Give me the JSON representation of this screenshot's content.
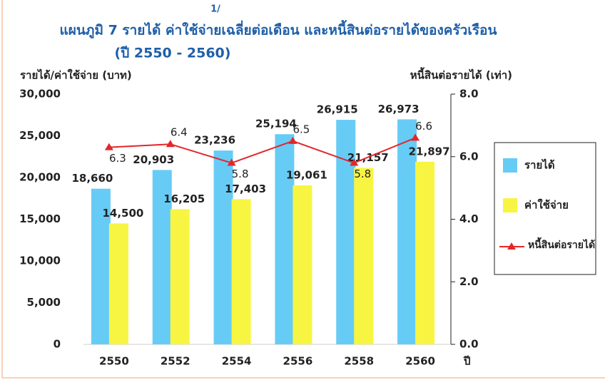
{
  "chart_data": {
    "type": "bar",
    "title": "แผนภูมิ  7  รายได้ ค่าใช้จ่ายเฉลี่ยต่อเดือน และหนี้สินต่อรายได้ของครัวเรือน",
    "title_note": "1/",
    "subtitle": "(ปี 2550 - 2560)",
    "y_label": "รายได้/ค่าใช้จ่าย (บาท)",
    "y2_label": "หนี้สินต่อรายได้ (เท่า)",
    "x_label": "ปี",
    "categories": [
      "2550",
      "2552",
      "2554",
      "2556",
      "2558",
      "2560"
    ],
    "series": [
      {
        "name": "รายได้",
        "type": "bar",
        "color": "#66ccf5",
        "values": [
          18660,
          20903,
          23236,
          25194,
          26915,
          26973
        ],
        "value_labels": [
          "18,660",
          "20,903",
          "23,236",
          "25,194",
          "26,915",
          "26,973"
        ]
      },
      {
        "name": "ค่าใช้จ่าย",
        "type": "bar",
        "color": "#f7f542",
        "values": [
          14500,
          16205,
          17403,
          19061,
          21157,
          21897
        ],
        "value_labels": [
          "14,500",
          "16,205",
          "17,403",
          "19,061",
          "21,157",
          "21,897"
        ]
      },
      {
        "name": "หนี้สินต่อรายได้",
        "type": "line",
        "axis": "y2",
        "color": "#e3262b",
        "values": [
          6.3,
          6.4,
          5.8,
          6.5,
          5.8,
          6.6
        ]
      }
    ],
    "ylim": [
      0,
      30000
    ],
    "yticks": [
      0,
      {
        "value": 5000,
        "label": "5,000"
      },
      {
        "value": 10000,
        "label": "10,000"
      },
      {
        "value": 15000,
        "label": "15,000"
      },
      {
        "value": 20000,
        "label": "20,000"
      },
      {
        "value": 25000,
        "label": "25,000"
      },
      {
        "value": 30000,
        "label": "30,000"
      }
    ],
    "y2lim": [
      0,
      8
    ],
    "y2ticks": [
      {
        "value": 0,
        "label": "0.0"
      },
      {
        "value": 2,
        "label": "2.0"
      },
      {
        "value": 4,
        "label": "4.0"
      },
      {
        "value": 6,
        "label": "6.0"
      },
      {
        "value": 8,
        "label": "8.0"
      }
    ],
    "legend": "right",
    "grid": false
  }
}
